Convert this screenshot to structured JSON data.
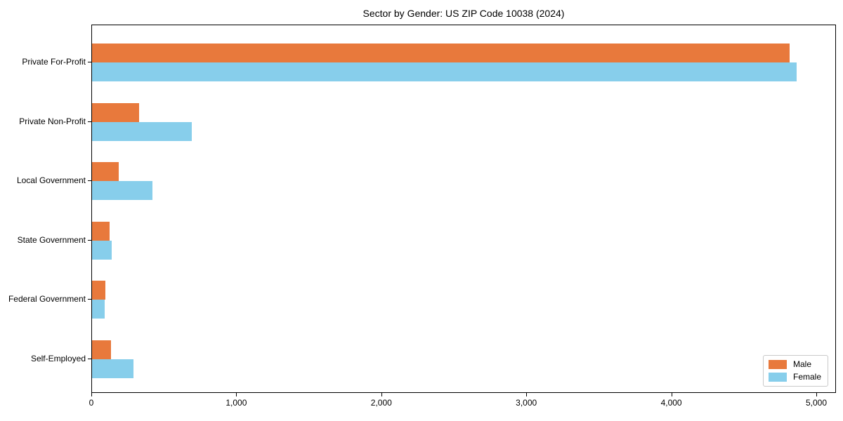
{
  "chart_data": {
    "type": "bar",
    "orientation": "horizontal",
    "title": "Sector by Gender: US ZIP Code 10038 (2024)",
    "categories": [
      "Private For-Profit",
      "Private Non-Profit",
      "Local Government",
      "State Government",
      "Federal Government",
      "Self-Employed"
    ],
    "series": [
      {
        "name": "Male",
        "color": "#e8793c",
        "values": [
          4810,
          325,
          185,
          120,
          92,
          130
        ]
      },
      {
        "name": "Female",
        "color": "#87ceeb",
        "values": [
          4860,
          690,
          415,
          135,
          88,
          285
        ]
      }
    ],
    "xlabel": "",
    "ylabel": "",
    "xlim": [
      0,
      5000
    ],
    "x_ticks": [
      "0",
      "1,000",
      "2,000",
      "3,000",
      "4,000",
      "5,000"
    ],
    "x_tick_values": [
      0,
      1000,
      2000,
      3000,
      4000,
      5000
    ],
    "grid": false,
    "legend": {
      "position": "lower right",
      "entries": [
        "Male",
        "Female"
      ]
    },
    "colors": {
      "axis": "#000000",
      "background": "#ffffff"
    }
  }
}
